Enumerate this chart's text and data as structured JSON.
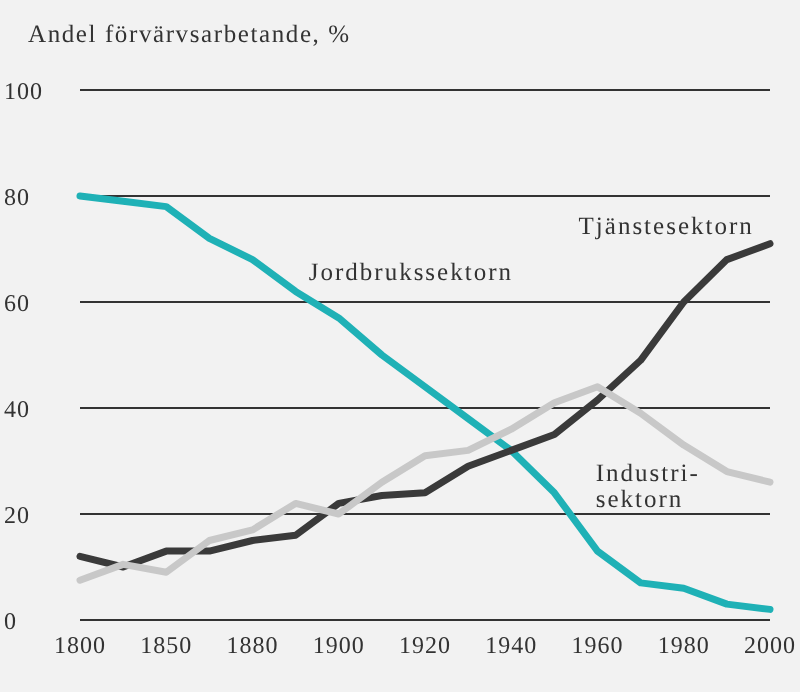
{
  "chart_data": {
    "type": "line",
    "ylabel": "Andel förvärvsarbetande, %",
    "categories": [
      "1800",
      null,
      "1850",
      null,
      "1880",
      null,
      "1900",
      null,
      "1920",
      null,
      "1940",
      null,
      "1960",
      null,
      "1980",
      null,
      "2000"
    ],
    "series": [
      {
        "name": "Jordbrukssektorn",
        "color": "#1fb1b6",
        "values": [
          80,
          79,
          78,
          72,
          68,
          62,
          57,
          50,
          44,
          38,
          32,
          24,
          13,
          7,
          6,
          3,
          2
        ]
      },
      {
        "name": "Tjänstesektorn",
        "color": "#3a3a3a",
        "values": [
          12,
          10,
          13,
          13,
          15,
          16,
          22,
          23.5,
          24,
          29,
          32,
          35,
          41.5,
          49,
          60,
          68,
          71
        ]
      },
      {
        "name": "Industri-\nsektorn",
        "color": "#c8c8c8",
        "values": [
          7.5,
          10.5,
          9,
          15,
          17,
          22,
          20,
          26,
          31,
          32,
          36,
          41,
          44,
          39,
          33,
          28,
          26
        ]
      }
    ],
    "ylim": [
      0,
      100
    ],
    "yticks": [
      0,
      20,
      40,
      60,
      80,
      100
    ],
    "grid": "y",
    "legend": false,
    "marker": "none",
    "line_style": "solid"
  }
}
